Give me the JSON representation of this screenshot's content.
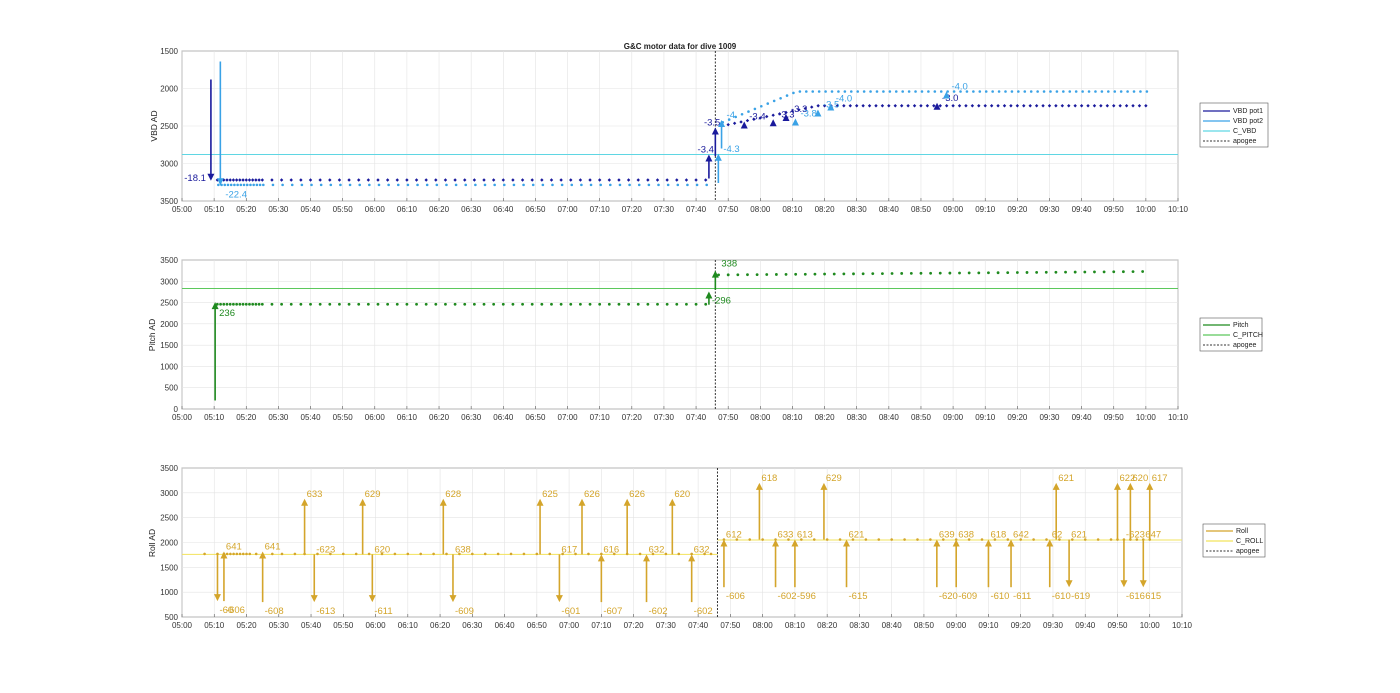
{
  "title": "G&C motor data for dive 1009",
  "colors": {
    "vbd_pot1": "#1a1a9c",
    "vbd_pot2": "#3aa2e6",
    "c_vbd": "#5fd6e3",
    "pitch": "#1f8a1f",
    "c_pitch": "#5cc85c",
    "roll": "#d4a52b",
    "c_roll": "#f2e35c",
    "apogee": "#333333",
    "grid": "#e3e3e3",
    "axis": "#555555"
  },
  "x_ticks": [
    "05:00",
    "05:10",
    "05:20",
    "05:30",
    "05:40",
    "05:50",
    "06:00",
    "06:10",
    "06:20",
    "06:30",
    "06:40",
    "06:50",
    "07:00",
    "07:10",
    "07:20",
    "07:30",
    "07:40",
    "07:50",
    "08:00",
    "08:10",
    "08:20",
    "08:30",
    "08:40",
    "08:50",
    "09:00",
    "09:10",
    "09:20",
    "09:30",
    "09:40",
    "09:50",
    "10:00",
    "10:10"
  ],
  "chart_data": [
    {
      "type": "scatter",
      "ylabel": "VBD AD",
      "ylim": [
        1500,
        3500
      ],
      "y_reversed": true,
      "y_ticks": [
        1500,
        2000,
        2500,
        3000,
        3500
      ],
      "xlim": [
        "05:00",
        "10:10"
      ],
      "legend": [
        "VBD pot1",
        "VBD pot2",
        "C_VBD",
        "apogee"
      ],
      "legend_placement": "outside-right",
      "apogee_x": "07:46",
      "reference_line": {
        "name": "C_VBD",
        "y": 2880
      },
      "series": [
        {
          "name": "VBD pot1",
          "y_start": 3230,
          "y_mid": 3220,
          "y_end": 2230
        },
        {
          "name": "VBD pot2",
          "y_start": 3295,
          "y_mid": 3285,
          "y_end": 2040
        }
      ],
      "annotations": [
        {
          "label": "-18.1",
          "x": "05:09",
          "y1": 1880,
          "y2": 3230,
          "series": "VBD pot1"
        },
        {
          "label": "-22.4",
          "x": "05:11",
          "y1": 1640,
          "y2": 3290,
          "series": "VBD pot2"
        },
        {
          "label": "-3.4",
          "x": "07:44",
          "y1": 3200,
          "y2": 2880,
          "series": "VBD pot1"
        },
        {
          "label": "-3.5",
          "x": "07:46",
          "y1": 2900,
          "y2": 2520,
          "series": "VBD pot1"
        },
        {
          "label": "-4.3",
          "x": "07:46",
          "y1": 3260,
          "y2": 2870,
          "series": "VBD pot2"
        },
        {
          "label": "-4.",
          "x": "07:47",
          "y1": 2800,
          "y2": 2420,
          "series": "VBD pot2"
        },
        {
          "label": "-3.4",
          "x": "07:55",
          "y1": 2510,
          "y2": 2440,
          "series": "VBD pot1"
        },
        {
          "label": "-3.3",
          "x": "08:04",
          "y1": 2460,
          "y2": 2410,
          "series": "VBD pot1"
        },
        {
          "label": "-3.3",
          "x": "08:08",
          "y1": 2400,
          "y2": 2340,
          "series": "VBD pot1"
        },
        {
          "label": "-3.8",
          "x": "08:10",
          "y1": 2470,
          "y2": 2400,
          "series": "VBD pot2"
        },
        {
          "label": "-3.5",
          "x": "08:17",
          "y1": 2330,
          "y2": 2280,
          "series": "VBD pot2"
        },
        {
          "label": "-4.0",
          "x": "08:21",
          "y1": 2270,
          "y2": 2200,
          "series": "VBD pot2"
        },
        {
          "label": "-3.0",
          "x": "08:55",
          "y1": 2240,
          "y2": 2190,
          "series": "VBD pot1"
        },
        {
          "label": "-4.0",
          "x": "08:57",
          "y1": 2110,
          "y2": 2040,
          "series": "VBD pot2"
        }
      ]
    },
    {
      "type": "scatter",
      "ylabel": "Pitch AD",
      "ylim": [
        0,
        3500
      ],
      "y_ticks": [
        0,
        500,
        1000,
        1500,
        2000,
        2500,
        3000,
        3500
      ],
      "xlim": [
        "05:00",
        "10:10"
      ],
      "legend": [
        "Pitch",
        "C_PITCH",
        "apogee"
      ],
      "legend_placement": "outside-right",
      "apogee_x": "07:46",
      "reference_line": {
        "name": "C_PITCH",
        "y": 2830
      },
      "series": [
        {
          "name": "Pitch",
          "y_start": 2480,
          "y_mid": 2460,
          "y_end": 3230
        }
      ],
      "annotations": [
        {
          "label": "236",
          "x": "05:10",
          "y1": 200,
          "y2": 2510,
          "series": "Pitch"
        },
        {
          "label": "-296",
          "x": "07:44",
          "y1": 2450,
          "y2": 2760,
          "series": "Pitch"
        },
        {
          "label": "338",
          "x": "07:46",
          "y1": 2800,
          "y2": 3250,
          "series": "Pitch"
        }
      ]
    },
    {
      "type": "scatter",
      "ylabel": "Roll AD",
      "ylim": [
        500,
        3500
      ],
      "y_ticks": [
        500,
        1000,
        1500,
        2000,
        2500,
        3000,
        3500
      ],
      "xlim": [
        "05:00",
        "10:10"
      ],
      "legend": [
        "Roll",
        "C_ROLL",
        "apogee"
      ],
      "legend_placement": "outside-right",
      "apogee_x": "07:46",
      "reference_line": {
        "name": "C_ROLL",
        "y": 1760,
        "y_after_apogee": 2050
      },
      "series": [
        {
          "name": "Roll",
          "y_before": 1770,
          "y_after": 2060
        }
      ],
      "roll_marker_times": [
        "05:07",
        "05:11",
        "05:13",
        "05:14",
        "05:15",
        "05:16",
        "05:17",
        "05:18",
        "05:19",
        "05:20",
        "05:21",
        "05:23",
        "05:28",
        "05:31",
        "05:35",
        "05:38",
        "05:42",
        "05:46",
        "05:50",
        "05:54",
        "05:58",
        "06:02",
        "06:06",
        "06:10",
        "06:14",
        "06:18",
        "06:22",
        "06:26",
        "06:30",
        "06:34",
        "06:38",
        "06:42",
        "06:46",
        "06:50",
        "06:54",
        "06:58",
        "07:02",
        "07:06",
        "07:10",
        "07:14",
        "07:18",
        "07:22",
        "07:26",
        "07:30",
        "07:34",
        "07:38",
        "07:42",
        "07:44",
        "07:48",
        "07:52",
        "07:56",
        "08:00",
        "08:04",
        "08:08",
        "08:12",
        "08:16",
        "08:20",
        "08:24",
        "08:28",
        "08:32",
        "08:36",
        "08:40",
        "08:44",
        "08:48",
        "08:52",
        "08:56",
        "09:00",
        "09:04",
        "09:08",
        "09:12",
        "09:16",
        "09:20",
        "09:24",
        "09:28",
        "09:32",
        "09:36",
        "09:40",
        "09:44",
        "09:48",
        "09:50",
        "09:52",
        "09:54",
        "09:56",
        "09:58",
        "10:00"
      ],
      "arrow_pairs": [
        {
          "x": "05:11",
          "y_high": 1760,
          "y_low": 820,
          "dir": "down",
          "top_label": "",
          "bottom_label": "-60"
        },
        {
          "x": "05:13",
          "y_high": 1820,
          "y_low": 820,
          "dir": "up",
          "top_label": "641",
          "bottom_label": "-606"
        },
        {
          "x": "05:25",
          "y_high": 1820,
          "y_low": 800,
          "dir": "up",
          "top_label": "641",
          "bottom_label": "-608"
        },
        {
          "x": "05:38",
          "y_high": 2880,
          "y_low": 1760,
          "dir": "up",
          "top_label": "633",
          "bottom_label": ""
        },
        {
          "x": "05:41",
          "y_high": 1760,
          "y_low": 800,
          "dir": "down",
          "top_label": "-623",
          "bottom_label": "-613"
        },
        {
          "x": "05:56",
          "y_high": 2880,
          "y_low": 1760,
          "dir": "up",
          "top_label": "629",
          "bottom_label": ""
        },
        {
          "x": "05:59",
          "y_high": 1760,
          "y_low": 800,
          "dir": "down",
          "top_label": "620",
          "bottom_label": "-611"
        },
        {
          "x": "06:21",
          "y_high": 2880,
          "y_low": 1760,
          "dir": "up",
          "top_label": "628",
          "bottom_label": ""
        },
        {
          "x": "06:24",
          "y_high": 1760,
          "y_low": 800,
          "dir": "down",
          "top_label": "638",
          "bottom_label": "-609"
        },
        {
          "x": "06:51",
          "y_high": 2880,
          "y_low": 1760,
          "dir": "up",
          "top_label": "625",
          "bottom_label": ""
        },
        {
          "x": "06:57",
          "y_high": 1760,
          "y_low": 800,
          "dir": "down",
          "top_label": "617",
          "bottom_label": "-601"
        },
        {
          "x": "07:04",
          "y_high": 2880,
          "y_low": 1760,
          "dir": "up",
          "top_label": "626",
          "bottom_label": ""
        },
        {
          "x": "07:10",
          "y_high": 1760,
          "y_low": 800,
          "dir": "up",
          "top_label": "616",
          "bottom_label": "-607"
        },
        {
          "x": "07:18",
          "y_high": 2880,
          "y_low": 1760,
          "dir": "up",
          "top_label": "626",
          "bottom_label": ""
        },
        {
          "x": "07:24",
          "y_high": 1760,
          "y_low": 800,
          "dir": "up",
          "top_label": "632",
          "bottom_label": "-602"
        },
        {
          "x": "07:32",
          "y_high": 2880,
          "y_low": 1760,
          "dir": "up",
          "top_label": "620",
          "bottom_label": ""
        },
        {
          "x": "07:38",
          "y_high": 1760,
          "y_low": 800,
          "dir": "up",
          "top_label": "632",
          "bottom_label": "-602"
        },
        {
          "x": "07:48",
          "y_high": 2060,
          "y_low": 1100,
          "dir": "up",
          "top_label": "612",
          "bottom_label": "-606"
        },
        {
          "x": "07:59",
          "y_high": 3200,
          "y_low": 2060,
          "dir": "up",
          "top_label": "618",
          "bottom_label": ""
        },
        {
          "x": "08:04",
          "y_high": 2060,
          "y_low": 1100,
          "dir": "up",
          "top_label": "633",
          "bottom_label": "-602"
        },
        {
          "x": "08:10",
          "y_high": 2060,
          "y_low": 1100,
          "dir": "up",
          "top_label": "613",
          "bottom_label": "-596"
        },
        {
          "x": "08:19",
          "y_high": 3200,
          "y_low": 2060,
          "dir": "up",
          "top_label": "629",
          "bottom_label": ""
        },
        {
          "x": "08:26",
          "y_high": 2060,
          "y_low": 1100,
          "dir": "up",
          "top_label": "621",
          "bottom_label": "-615"
        },
        {
          "x": "08:54",
          "y_high": 2060,
          "y_low": 1100,
          "dir": "up",
          "top_label": "639",
          "bottom_label": "-620"
        },
        {
          "x": "09:00",
          "y_high": 2060,
          "y_low": 1100,
          "dir": "up",
          "top_label": "638",
          "bottom_label": "-609"
        },
        {
          "x": "09:10",
          "y_high": 2060,
          "y_low": 1100,
          "dir": "up",
          "top_label": "618",
          "bottom_label": "-610"
        },
        {
          "x": "09:17",
          "y_high": 2060,
          "y_low": 1100,
          "dir": "up",
          "top_label": "642",
          "bottom_label": "-611"
        },
        {
          "x": "09:31",
          "y_high": 3200,
          "y_low": 2060,
          "dir": "up",
          "top_label": "621",
          "bottom_label": ""
        },
        {
          "x": "09:29",
          "y_high": 2060,
          "y_low": 1100,
          "dir": "up",
          "top_label": "62",
          "bottom_label": "-610"
        },
        {
          "x": "09:35",
          "y_high": 2060,
          "y_low": 1100,
          "dir": "down",
          "top_label": "621",
          "bottom_label": "-619"
        },
        {
          "x": "09:50",
          "y_high": 3200,
          "y_low": 2060,
          "dir": "up",
          "top_label": "622",
          "bottom_label": ""
        },
        {
          "x": "09:54",
          "y_high": 3200,
          "y_low": 2060,
          "dir": "up",
          "top_label": "620",
          "bottom_label": ""
        },
        {
          "x": "10:00",
          "y_high": 3200,
          "y_low": 2060,
          "dir": "up",
          "top_label": "617",
          "bottom_label": ""
        },
        {
          "x": "09:52",
          "y_high": 2060,
          "y_low": 1100,
          "dir": "down",
          "top_label": "-623",
          "bottom_label": "-616"
        },
        {
          "x": "09:58",
          "y_high": 2060,
          "y_low": 1100,
          "dir": "down",
          "top_label": "647",
          "bottom_label": "615"
        }
      ]
    }
  ]
}
